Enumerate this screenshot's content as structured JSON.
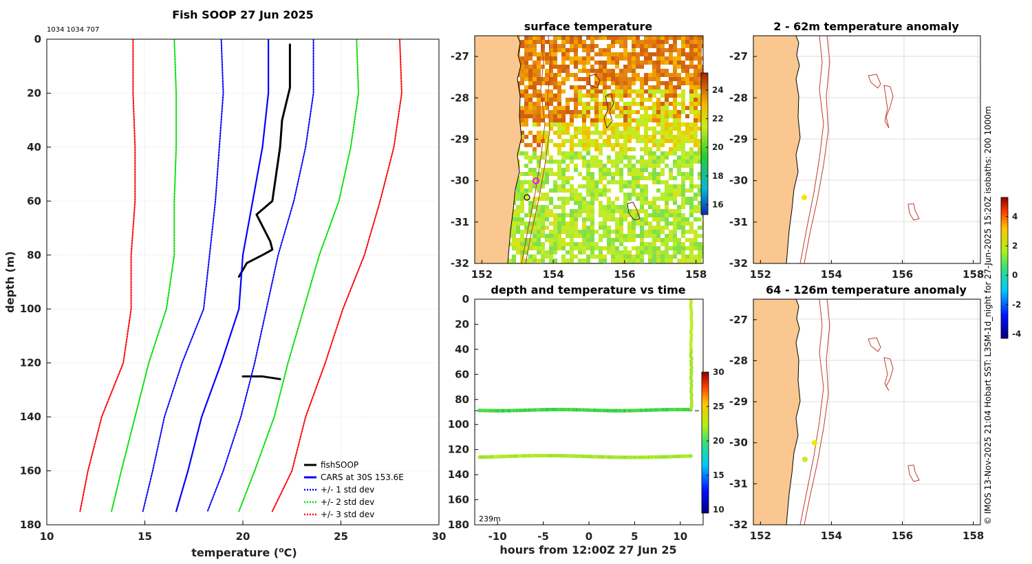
{
  "colors": {
    "land": "#f9c78f",
    "fish": "#000000",
    "cars": "#0000ff",
    "std1": "#0000ff",
    "std2": "#00dd00",
    "std3": "#ff0000",
    "isobath": "#c0392b",
    "grid": "#c8c8c8",
    "station_yellow": "#f2e600",
    "station_green": "#c6ea2a",
    "station_magenta": "#ff00ff"
  },
  "profile": {
    "title": "Fish SOOP 27 Jun 2025",
    "ids": "1034 1034 707",
    "xlabel_prefix": "temperature (",
    "xlabel_sup": "o",
    "xlabel_suffix": "C)",
    "ylabel": "depth (m)",
    "xticks": [
      "10",
      "15",
      "20",
      "25",
      "30"
    ],
    "yticks": [
      "0",
      "20",
      "40",
      "60",
      "80",
      "100",
      "120",
      "140",
      "160",
      "180"
    ],
    "legend": [
      "fishSOOP",
      "CARS at 30S 153.6E",
      "+/- 1 std dev",
      "+/- 2 std dev",
      "+/- 3 std dev"
    ]
  },
  "sst_map": {
    "title": "surface temperature",
    "xticks": [
      "152",
      "154",
      "156",
      "158"
    ],
    "yticks": [
      "-27",
      "-28",
      "-29",
      "-30",
      "-31",
      "-32"
    ],
    "colorbar_ticks": [
      "24",
      "22",
      "20",
      "18",
      "16"
    ]
  },
  "anom_map1": {
    "title": "2 - 62m temperature anomaly",
    "xticks": [
      "152",
      "154",
      "156",
      "158"
    ],
    "yticks": [
      "-27",
      "-28",
      "-29",
      "-30",
      "-31",
      "-32"
    ]
  },
  "anom_map2": {
    "title": "64 - 126m temperature anomaly",
    "xticks": [
      "152",
      "154",
      "156",
      "158"
    ],
    "yticks": [
      "-27",
      "-28",
      "-29",
      "-30",
      "-31",
      "-32"
    ]
  },
  "anom_colorbar_ticks": [
    "4",
    "2",
    "0",
    "-2",
    "-4"
  ],
  "timeseries": {
    "title": "depth and temperature vs time",
    "xlabel": "hours from 12:00Z 27 Jun 25",
    "xticks": [
      "-10",
      "-5",
      "0",
      "5",
      "10"
    ],
    "yticks": [
      "0",
      "20",
      "40",
      "60",
      "80",
      "100",
      "120",
      "140",
      "160",
      "180"
    ],
    "colorbar_ticks": [
      "30",
      "25",
      "20",
      "15",
      "10"
    ],
    "bottom_label": "239m"
  },
  "side_caption": "© IMOS 13-Nov-2025 21:04 Hobart SST: L3SM-1d_night for 27-Jun-2025 15:20Z isobaths: 200  1000m",
  "chart_data": [
    {
      "type": "line",
      "title": "Fish SOOP 27 Jun 2025",
      "xlabel": "temperature (oC)",
      "ylabel": "depth (m)",
      "xlim": [
        10,
        30
      ],
      "ylim": [
        180,
        0
      ],
      "grid": true,
      "legend_position": "bottom-right",
      "series": [
        {
          "name": "fishSOOP",
          "style": "solid",
          "color": "#000000",
          "depth": [
            2,
            18,
            30,
            40,
            60,
            65,
            75,
            78,
            80,
            83,
            88
          ],
          "temperature": [
            22.4,
            22.4,
            22.0,
            21.9,
            21.5,
            20.7,
            21.4,
            21.5,
            21.0,
            20.2,
            19.8
          ]
        },
        {
          "name": "fishSOOP",
          "style": "solid",
          "color": "#000000",
          "depth": [
            125,
            125,
            126
          ],
          "temperature": [
            20.0,
            21.0,
            21.9
          ]
        },
        {
          "name": "CARS at 30S 153.6E",
          "style": "solid",
          "color": "#0000ff",
          "depth": [
            0,
            20,
            40,
            60,
            80,
            100,
            120,
            140,
            160,
            175
          ],
          "temperature": [
            21.3,
            21.3,
            21.0,
            20.5,
            20.0,
            19.8,
            18.9,
            17.9,
            17.2,
            16.6
          ]
        },
        {
          "name": "+/- 1 std dev",
          "style": "dotted",
          "color": "#0000ff",
          "depth": [
            0,
            20,
            40,
            60,
            80,
            100,
            120,
            140,
            160,
            175
          ],
          "temperature": [
            18.9,
            19.0,
            18.8,
            18.6,
            18.3,
            18.0,
            16.9,
            16.0,
            15.4,
            14.9
          ]
        },
        {
          "name": "+/- 1 std dev",
          "style": "dotted",
          "color": "#0000ff",
          "depth": [
            0,
            20,
            40,
            60,
            80,
            100,
            120,
            140,
            160,
            175
          ],
          "temperature": [
            23.6,
            23.6,
            23.2,
            22.6,
            21.8,
            21.2,
            20.6,
            19.9,
            19.0,
            18.2
          ]
        },
        {
          "name": "+/- 2 std dev",
          "style": "dotted",
          "color": "#00dd00",
          "depth": [
            0,
            20,
            40,
            60,
            80,
            100,
            120,
            140,
            160,
            175
          ],
          "temperature": [
            16.5,
            16.6,
            16.6,
            16.5,
            16.5,
            16.1,
            15.2,
            14.5,
            13.8,
            13.3
          ]
        },
        {
          "name": "+/- 2 std dev",
          "style": "dotted",
          "color": "#00dd00",
          "depth": [
            0,
            20,
            40,
            60,
            80,
            100,
            120,
            140,
            160,
            175
          ],
          "temperature": [
            25.8,
            25.9,
            25.5,
            24.9,
            23.9,
            23.1,
            22.3,
            21.6,
            20.6,
            19.8
          ]
        },
        {
          "name": "+/- 3 std dev",
          "style": "dotted",
          "color": "#ff0000",
          "depth": [
            0,
            20,
            40,
            60,
            80,
            100,
            120,
            140,
            160,
            175
          ],
          "temperature": [
            14.4,
            14.4,
            14.5,
            14.5,
            14.3,
            14.3,
            13.9,
            12.8,
            12.1,
            11.7
          ]
        },
        {
          "name": "+/- 3 std dev",
          "style": "dotted",
          "color": "#ff0000",
          "depth": [
            0,
            20,
            40,
            60,
            80,
            100,
            120,
            140,
            160,
            175
          ],
          "temperature": [
            28.0,
            28.1,
            27.7,
            27.0,
            26.2,
            25.1,
            24.2,
            23.2,
            22.5,
            21.5
          ]
        }
      ]
    },
    {
      "type": "heatmap",
      "title": "surface temperature",
      "x_range": [
        151.8,
        158.2
      ],
      "y_range": [
        -32,
        -26.5
      ],
      "colorbar_range": [
        15.3,
        25.2
      ],
      "colorbar_ticks": [
        16,
        18,
        20,
        22,
        24
      ]
    },
    {
      "type": "scatter",
      "title": "depth and temperature vs time",
      "xlabel": "hours from 12:00Z 27 Jun 25",
      "xlim": [
        -12.5,
        12.5
      ],
      "ylim": [
        180,
        0
      ],
      "colorbar_range": [
        9.5,
        30
      ],
      "colorbar_ticks": [
        10,
        15,
        20,
        25,
        30
      ],
      "reference_line_depth": 89,
      "bottom_depth_label": "239m",
      "series": [
        {
          "name": "upper track",
          "depth": 88.5,
          "hours": [
            -12,
            11.2
          ],
          "temperature": 21.5
        },
        {
          "name": "lower track",
          "depth": 125.5,
          "hours": [
            -12,
            11.2
          ],
          "temperature": 22.5
        },
        {
          "name": "profile",
          "hours": 11.2,
          "depth": [
            0,
            88
          ],
          "temperature": 22.5
        }
      ]
    },
    {
      "type": "heatmap",
      "title": "2 - 62m temperature anomaly",
      "x_range": [
        151.8,
        158.2
      ],
      "y_range": [
        -32,
        -26.5
      ],
      "colorbar_range": [
        -4.3,
        5.3
      ],
      "colorbar_ticks": [
        -4,
        -2,
        0,
        2,
        4
      ],
      "stations": [
        {
          "lon": 153.2,
          "lat": -30.4,
          "anomaly": 1.8
        }
      ]
    },
    {
      "type": "heatmap",
      "title": "64 - 126m temperature anomaly",
      "x_range": [
        151.8,
        158.2
      ],
      "y_range": [
        -32,
        -26.5
      ],
      "colorbar_range": [
        -4.3,
        5.3
      ],
      "colorbar_ticks": [
        -4,
        -2,
        0,
        2,
        4
      ],
      "stations": [
        {
          "lon": 153.5,
          "lat": -30.0,
          "anomaly": 2.0
        },
        {
          "lon": 153.2,
          "lat": -30.4,
          "anomaly": 1.4
        }
      ]
    }
  ]
}
